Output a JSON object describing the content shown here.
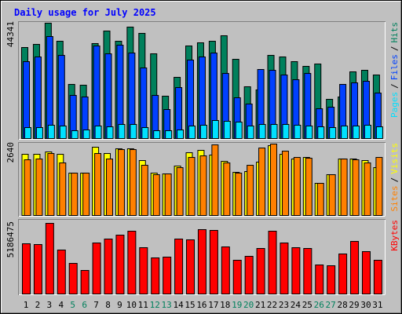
{
  "chart_data": [
    {
      "type": "bar",
      "title": "Daily usage for July 2025",
      "ylim": [
        0,
        44341
      ],
      "yticks": [
        44341
      ],
      "legend_separator": "/",
      "series": [
        {
          "name": "Hits",
          "color": "#00805C",
          "values": [
            34990,
            36190,
            44341,
            37400,
            20810,
            20510,
            36500,
            41320,
            37400,
            42830,
            40420,
            32570,
            16290,
            23530,
            35590,
            36800,
            37400,
            39510,
            30460,
            19910,
            18700,
            31970,
            31370,
            29560,
            27750,
            28650,
            15080,
            15990,
            25640,
            26240,
            24430
          ]
        },
        {
          "name": "Files",
          "color": "#0040FF",
          "values": [
            29560,
            31370,
            39210,
            31970,
            16590,
            15990,
            35590,
            32570,
            35890,
            32870,
            27140,
            16590,
            11160,
            19600,
            30160,
            31370,
            32870,
            25030,
            15680,
            13270,
            26540,
            26240,
            24430,
            22620,
            25030,
            11460,
            12060,
            20810,
            21410,
            22020,
            17490
          ]
        },
        {
          "name": "Pages",
          "color": "#00E0FF",
          "values": [
            4220,
            4220,
            5130,
            4830,
            3020,
            3320,
            4830,
            4520,
            5430,
            5430,
            4220,
            3020,
            3020,
            3320,
            4830,
            5130,
            6940,
            6640,
            6330,
            4830,
            5430,
            5430,
            5430,
            5130,
            4830,
            4520,
            4220,
            4830,
            4830,
            5130,
            4520
          ]
        }
      ]
    },
    {
      "type": "bar",
      "ylim": [
        0,
        2640
      ],
      "yticks": [
        2640
      ],
      "legend_separator": "/",
      "series": [
        {
          "name": "Visits",
          "color": "#FFFF00",
          "values": [
            2262,
            2262,
            2349,
            2262,
            1566,
            1566,
            2523,
            2291,
            2465,
            2465,
            2030,
            1566,
            1537,
            1827,
            2320,
            2407,
            2233,
            2001,
            1595,
            1624,
            1972,
            2581,
            2262,
            2088,
            2146,
            1189,
            1508,
            2088,
            2088,
            2030,
            1769
          ]
        },
        {
          "name": "Sites",
          "color": "#FF8000",
          "values": [
            2059,
            2088,
            2291,
            1943,
            1566,
            1566,
            2291,
            2088,
            2436,
            2436,
            1856,
            1508,
            1537,
            1769,
            2146,
            2204,
            2610,
            1943,
            1566,
            1856,
            2494,
            2640,
            2378,
            2146,
            2117,
            1189,
            1508,
            2088,
            2059,
            1943,
            2146
          ]
        }
      ]
    },
    {
      "type": "bar",
      "ylim": [
        0,
        5186475
      ],
      "yticks": [
        5186475
      ],
      "categories": [
        "1",
        "2",
        "3",
        "4",
        "5",
        "6",
        "7",
        "8",
        "9",
        "10",
        "11",
        "12",
        "13",
        "14",
        "15",
        "16",
        "17",
        "18",
        "19",
        "20",
        "21",
        "22",
        "23",
        "24",
        "25",
        "26",
        "27",
        "28",
        "29",
        "30",
        "31"
      ],
      "label_colors": [
        "#000000",
        "#000000",
        "#000000",
        "#000000",
        "#00805C",
        "#00805C",
        "#000000",
        "#000000",
        "#000000",
        "#000000",
        "#000000",
        "#00805C",
        "#00805C",
        "#000000",
        "#000000",
        "#000000",
        "#000000",
        "#000000",
        "#00805C",
        "#00805C",
        "#000000",
        "#000000",
        "#000000",
        "#000000",
        "#000000",
        "#00805C",
        "#00805C",
        "#000000",
        "#000000",
        "#000000",
        "#000000"
      ],
      "series": [
        {
          "name": "KBytes",
          "color": "#FF0000",
          "values": [
            3688128,
            3630501,
            5186475,
            3227112,
            2247453,
            1728810,
            3745755,
            4033890,
            4322025,
            4610160,
            3399993,
            2650842,
            2708469,
            4033890,
            3976263,
            4725414,
            4667787,
            3457620,
            2477961,
            2766096,
            3342366,
            4610160,
            3745755,
            3399993,
            3342366,
            2132199,
            2074572,
            2938977,
            3860009,
            3111858,
            2477961
          ]
        }
      ]
    }
  ]
}
